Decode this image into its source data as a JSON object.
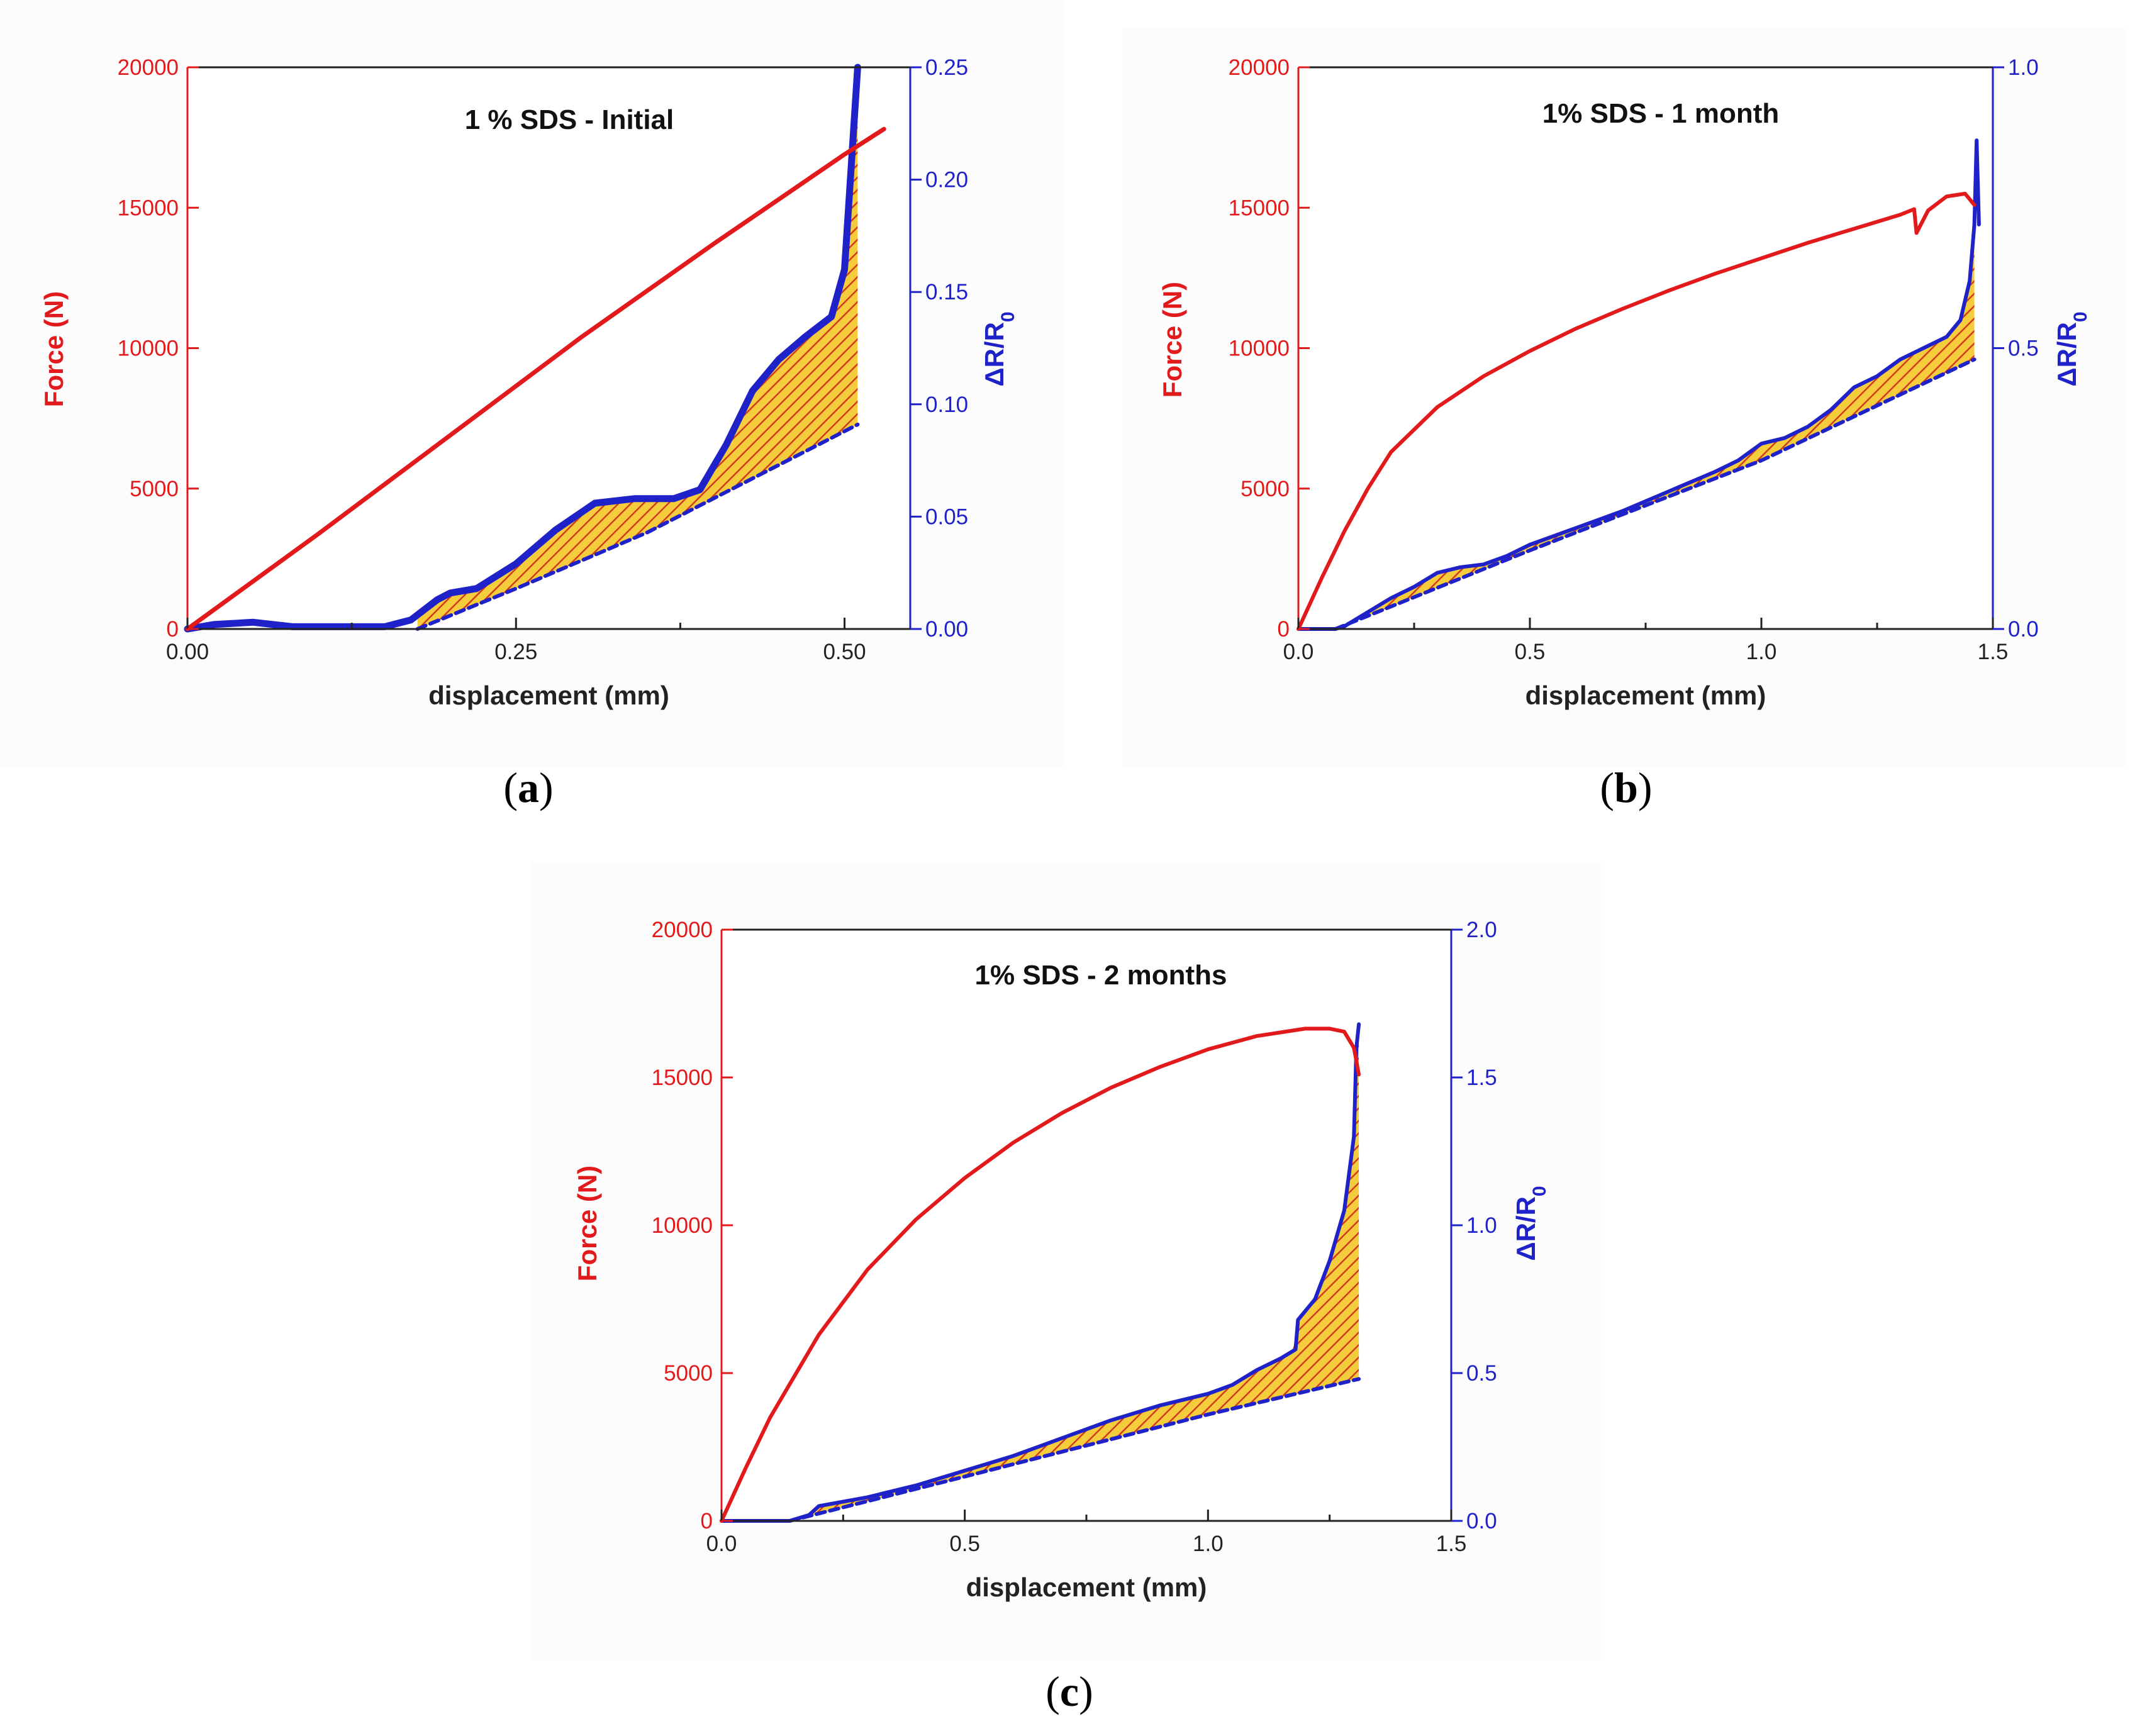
{
  "colors": {
    "force": "#e31a1c",
    "resistance": "#1f22c8",
    "hatch_fill": "#f5cc3c",
    "hatch_line": "#d23a1c",
    "panel_bg": "#fcfcfc"
  },
  "chart_data": [
    {
      "type": "line",
      "panel_label": "a",
      "title": "1 % SDS - Initial",
      "xlabel": "displacement (mm)",
      "ylabel_left": "Force (N)",
      "ylabel_right": "ΔR/R",
      "ylabel_right_sub": "0",
      "xlim": [
        0,
        0.55
      ],
      "xticks": [
        0,
        0.25,
        0.5
      ],
      "xtick_labels": [
        "0.00",
        "0.25",
        "0.50"
      ],
      "ylim_left": [
        0,
        20000
      ],
      "yticks_left": [
        0,
        5000,
        10000,
        15000,
        20000
      ],
      "ytick_labels_left": [
        "0",
        "5000",
        "10000",
        "15000",
        "20000"
      ],
      "ylim_right": [
        0,
        0.25
      ],
      "yticks_right": [
        0,
        0.05,
        0.1,
        0.15,
        0.2,
        0.25
      ],
      "ytick_labels_right": [
        "0.00",
        "0.05",
        "0.10",
        "0.15",
        "0.20",
        "0.25"
      ],
      "series": [
        {
          "name": "Force",
          "axis": "left",
          "style": "solid",
          "x": [
            0,
            0.1,
            0.2,
            0.3,
            0.4,
            0.45,
            0.5,
            0.53
          ],
          "y": [
            0,
            3400,
            6900,
            10400,
            13700,
            15300,
            16900,
            17800
          ]
        },
        {
          "name": "ΔR/R0",
          "axis": "right",
          "style": "solid",
          "x": [
            0,
            0.02,
            0.05,
            0.08,
            0.12,
            0.15,
            0.17,
            0.19,
            0.2,
            0.22,
            0.25,
            0.28,
            0.31,
            0.34,
            0.37,
            0.39,
            0.41,
            0.43,
            0.45,
            0.47,
            0.49,
            0.5,
            0.51
          ],
          "y": [
            0,
            0.002,
            0.003,
            0.001,
            0.001,
            0.001,
            0.004,
            0.013,
            0.016,
            0.018,
            0.029,
            0.044,
            0.056,
            0.058,
            0.058,
            0.062,
            0.082,
            0.106,
            0.12,
            0.13,
            0.139,
            0.16,
            0.25
          ]
        },
        {
          "name": "ΔR/R0 baseline",
          "axis": "right",
          "style": "dashed",
          "x": [
            0.175,
            0.25,
            0.35,
            0.45,
            0.51
          ],
          "y": [
            0,
            0.018,
            0.043,
            0.073,
            0.091
          ]
        }
      ]
    },
    {
      "type": "line",
      "panel_label": "b",
      "title": "1% SDS - 1 month",
      "xlabel": "displacement (mm)",
      "ylabel_left": "Force (N)",
      "ylabel_right": "ΔR/R",
      "ylabel_right_sub": "0",
      "xlim": [
        0,
        1.5
      ],
      "xticks": [
        0,
        0.5,
        1.0,
        1.5
      ],
      "xtick_labels": [
        "0.0",
        "0.5",
        "1.0",
        "1.5"
      ],
      "ylim_left": [
        0,
        20000
      ],
      "yticks_left": [
        0,
        5000,
        10000,
        15000,
        20000
      ],
      "ytick_labels_left": [
        "0",
        "5000",
        "10000",
        "15000",
        "20000"
      ],
      "ylim_right": [
        0,
        1.0
      ],
      "yticks_right": [
        0,
        0.5,
        1.0
      ],
      "ytick_labels_right": [
        "0.0",
        "0.5",
        "1.0"
      ],
      "series": [
        {
          "name": "Force",
          "axis": "left",
          "style": "solid",
          "x": [
            0,
            0.05,
            0.1,
            0.15,
            0.2,
            0.3,
            0.4,
            0.5,
            0.6,
            0.7,
            0.8,
            0.9,
            1.0,
            1.1,
            1.2,
            1.3,
            1.33,
            1.335,
            1.36,
            1.4,
            1.44,
            1.46
          ],
          "y": [
            0,
            1800,
            3500,
            5000,
            6300,
            7900,
            9000,
            9900,
            10700,
            11400,
            12050,
            12650,
            13200,
            13750,
            14250,
            14750,
            14950,
            14100,
            14900,
            15400,
            15500,
            15100
          ]
        },
        {
          "name": "ΔR/R0",
          "axis": "right",
          "style": "solid",
          "x": [
            0,
            0.08,
            0.1,
            0.15,
            0.2,
            0.25,
            0.3,
            0.35,
            0.4,
            0.45,
            0.5,
            0.6,
            0.7,
            0.8,
            0.9,
            0.95,
            1.0,
            1.05,
            1.1,
            1.15,
            1.2,
            1.25,
            1.3,
            1.35,
            1.4,
            1.43,
            1.45,
            1.46,
            1.465,
            1.47
          ],
          "y": [
            0,
            0,
            0.005,
            0.03,
            0.055,
            0.075,
            0.1,
            0.11,
            0.115,
            0.13,
            0.15,
            0.18,
            0.21,
            0.245,
            0.28,
            0.3,
            0.33,
            0.34,
            0.36,
            0.39,
            0.43,
            0.45,
            0.48,
            0.5,
            0.52,
            0.55,
            0.62,
            0.72,
            0.87,
            0.72
          ]
        },
        {
          "name": "ΔR/R0 baseline",
          "axis": "right",
          "style": "dashed",
          "x": [
            0.08,
            0.5,
            1.0,
            1.46
          ],
          "y": [
            0,
            0.14,
            0.3,
            0.48
          ]
        }
      ]
    },
    {
      "type": "line",
      "panel_label": "c",
      "title": "1% SDS - 2 months",
      "xlabel": "displacement (mm)",
      "ylabel_left": "Force (N)",
      "ylabel_right": "ΔR/R",
      "ylabel_right_sub": "0",
      "xlim": [
        0,
        1.5
      ],
      "xticks": [
        0,
        0.5,
        1.0,
        1.5
      ],
      "xtick_labels": [
        "0.0",
        "0.5",
        "1.0",
        "1.5"
      ],
      "ylim_left": [
        0,
        20000
      ],
      "yticks_left": [
        0,
        5000,
        10000,
        15000,
        20000
      ],
      "ytick_labels_left": [
        "0",
        "5000",
        "10000",
        "15000",
        "20000"
      ],
      "ylim_right": [
        0,
        2.0
      ],
      "yticks_right": [
        0,
        0.5,
        1.0,
        1.5,
        2.0
      ],
      "ytick_labels_right": [
        "0.0",
        "0.5",
        "1.0",
        "1.5",
        "2.0"
      ],
      "series": [
        {
          "name": "Force",
          "axis": "left",
          "style": "solid",
          "x": [
            0,
            0.05,
            0.1,
            0.2,
            0.3,
            0.4,
            0.5,
            0.6,
            0.7,
            0.8,
            0.9,
            1.0,
            1.1,
            1.2,
            1.25,
            1.28,
            1.3,
            1.31
          ],
          "y": [
            0,
            1800,
            3500,
            6300,
            8500,
            10200,
            11600,
            12800,
            13800,
            14650,
            15350,
            15950,
            16400,
            16650,
            16650,
            16550,
            16000,
            15100
          ]
        },
        {
          "name": "ΔR/R0",
          "axis": "right",
          "style": "solid",
          "x": [
            0,
            0.14,
            0.18,
            0.2,
            0.3,
            0.4,
            0.5,
            0.6,
            0.7,
            0.8,
            0.9,
            1.0,
            1.05,
            1.1,
            1.15,
            1.18,
            1.185,
            1.22,
            1.25,
            1.28,
            1.3,
            1.305,
            1.31
          ],
          "y": [
            0,
            0,
            0.02,
            0.05,
            0.08,
            0.12,
            0.17,
            0.22,
            0.28,
            0.34,
            0.39,
            0.43,
            0.46,
            0.51,
            0.55,
            0.58,
            0.68,
            0.75,
            0.88,
            1.05,
            1.3,
            1.6,
            1.68
          ]
        },
        {
          "name": "ΔR/R0 baseline",
          "axis": "right",
          "style": "dashed",
          "x": [
            0.14,
            0.5,
            1.0,
            1.31
          ],
          "y": [
            0,
            0.15,
            0.36,
            0.48
          ]
        }
      ]
    }
  ]
}
